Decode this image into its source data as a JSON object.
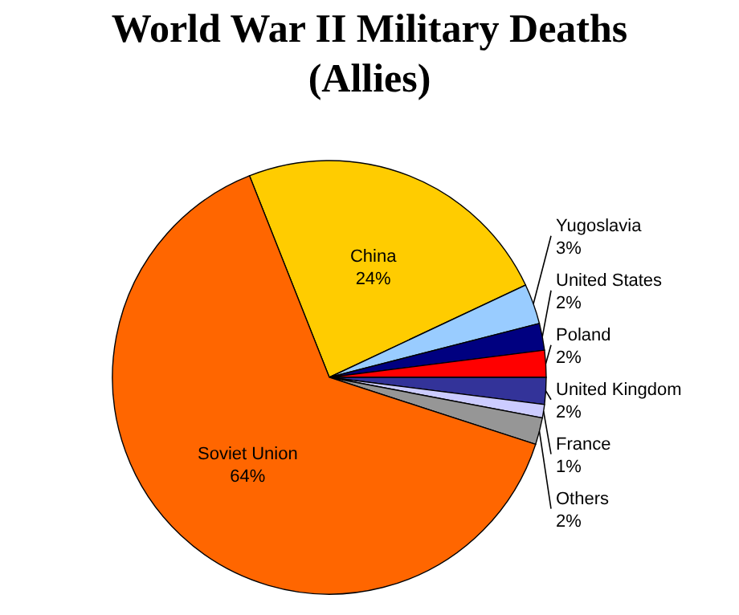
{
  "chart_data": {
    "type": "pie",
    "title": "World War II Military Deaths (Allies)",
    "categories": [
      "China",
      "Yugoslavia",
      "United States",
      "Poland",
      "United Kingdom",
      "France",
      "Others",
      "Soviet Union"
    ],
    "values": [
      24,
      3,
      2,
      2,
      2,
      1,
      2,
      64
    ],
    "colors": [
      "#ffcc00",
      "#99ccff",
      "#000080",
      "#ff0000",
      "#333399",
      "#ccccff",
      "#969696",
      "#ff6600"
    ],
    "value_labels": [
      "24%",
      "3%",
      "2%",
      "2%",
      "2%",
      "1%",
      "2%",
      "64%"
    ]
  }
}
